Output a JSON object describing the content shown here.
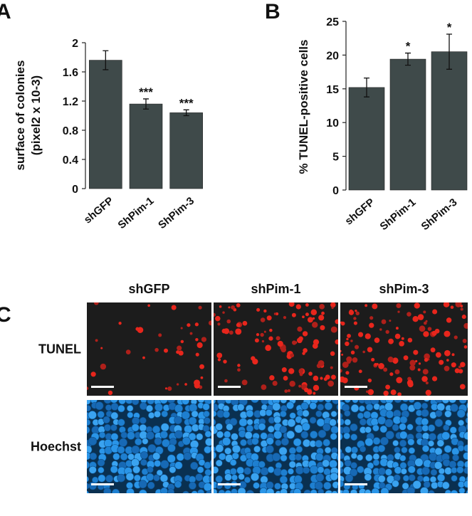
{
  "panels": {
    "a": "A",
    "b": "B",
    "c": "C"
  },
  "chart_data": [
    {
      "type": "bar",
      "ylabel": [
        "surface of colonies",
        "(pixel2 x 10-3)"
      ],
      "categories": [
        "shGFP",
        "ShPim-1",
        "ShPim-3"
      ],
      "values": [
        1.76,
        1.16,
        1.04
      ],
      "errors": [
        0.13,
        0.07,
        0.04
      ],
      "annotations": [
        null,
        "***",
        "***"
      ],
      "color": "#3f4a4a",
      "ylim": [
        0,
        2
      ],
      "yticks": [
        0,
        0.4,
        0.8,
        1.2,
        1.6,
        2
      ]
    },
    {
      "type": "bar",
      "ylabel": [
        "% TUNEL-positive cells"
      ],
      "categories": [
        "shGFP",
        "ShPim-1",
        "ShPim-3"
      ],
      "values": [
        15.2,
        19.4,
        20.5
      ],
      "errors": [
        1.4,
        0.9,
        2.6
      ],
      "annotations": [
        null,
        "*",
        "*"
      ],
      "color": "#3f4a4a",
      "ylim": [
        0,
        25
      ],
      "yticks": [
        0,
        5,
        10,
        15,
        20,
        25
      ]
    }
  ],
  "images": {
    "columns": [
      "shGFP",
      "shPim-1",
      "shPim-3"
    ],
    "rows": [
      "TUNEL",
      "Hoechst"
    ]
  }
}
